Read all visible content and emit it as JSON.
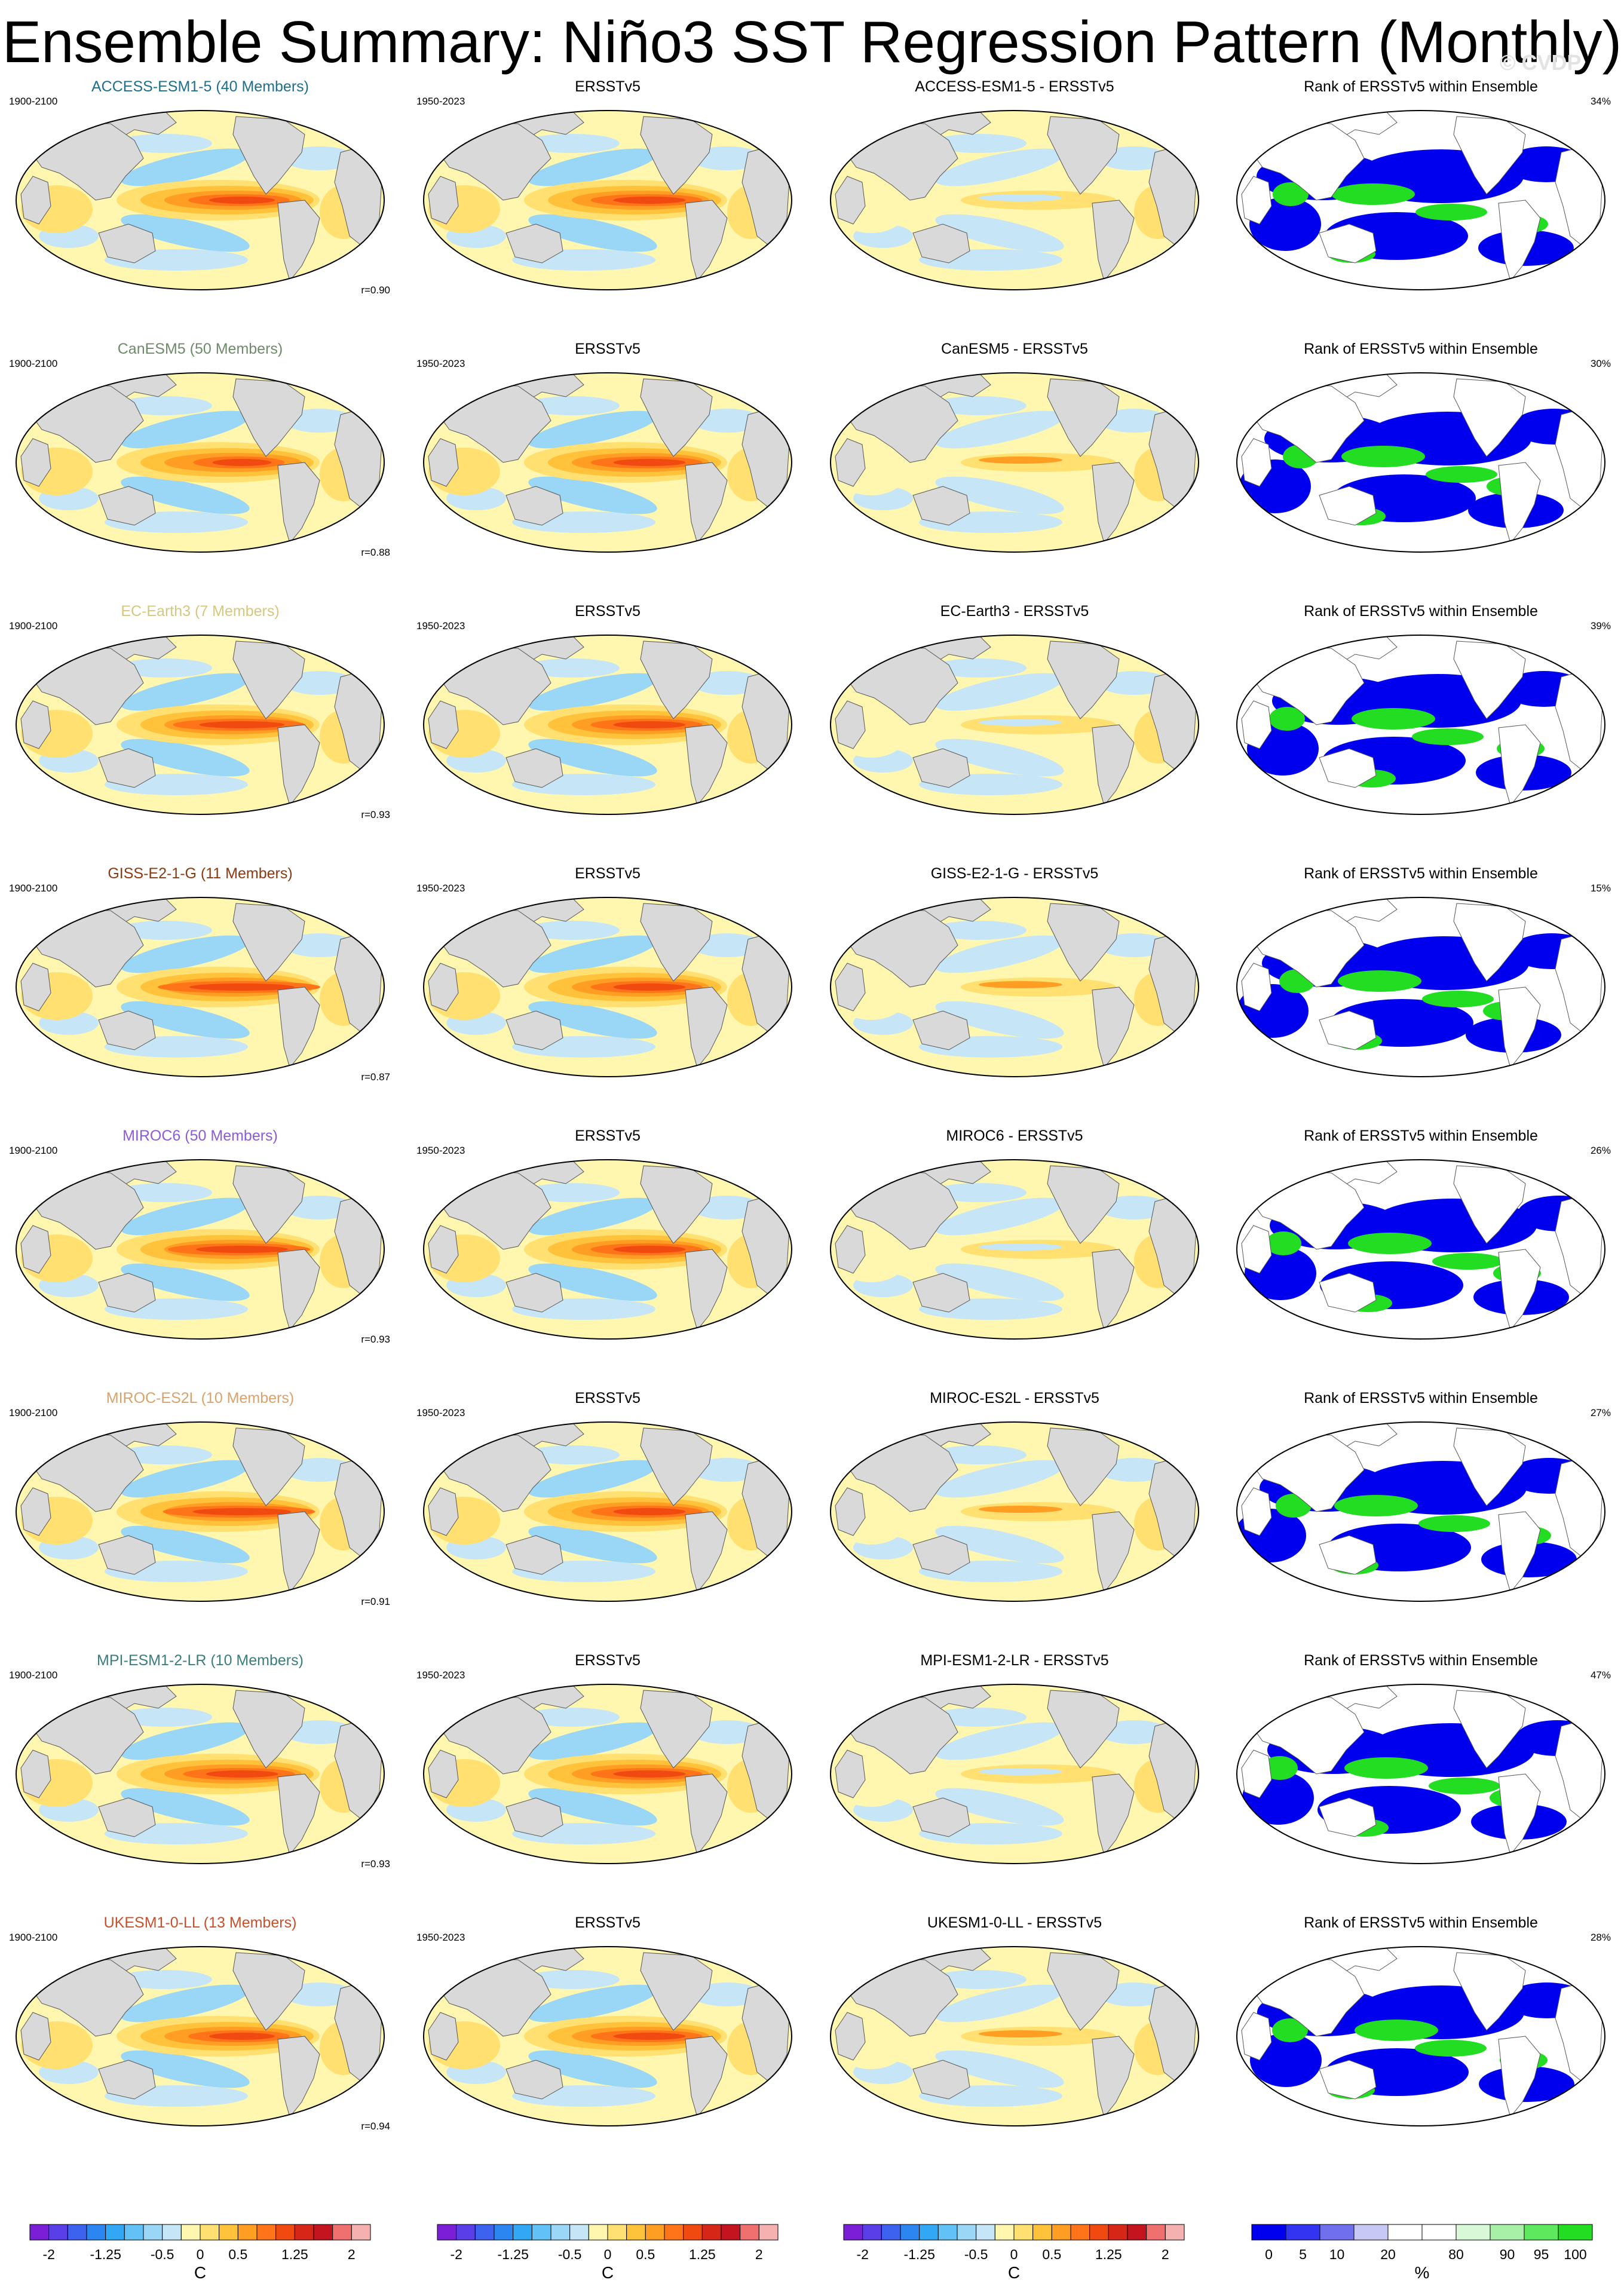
{
  "title": "Ensemble Summary: Niño3 SST Regression Pattern (Monthly)",
  "watermark": "© CVDP",
  "column_titles": {
    "observation": "ERSSTv5",
    "rank": "Rank of ERSSTv5 within Ensemble"
  },
  "model_period": "1900-2100",
  "obs_period": "1950-2023",
  "rows": [
    {
      "model": "ACCESS-ESM1-5 (40 Members)",
      "color": "#1e6e8e",
      "diff_title": "ACCESS-ESM1-5 - ERSSTv5",
      "r": "r=0.90",
      "rank_pct": "34%"
    },
    {
      "model": "CanESM5 (50 Members)",
      "color": "#6f8a6a",
      "diff_title": "CanESM5 - ERSSTv5",
      "r": "r=0.88",
      "rank_pct": "30%"
    },
    {
      "model": "EC-Earth3 (7 Members)",
      "color": "#d6c77e",
      "diff_title": "EC-Earth3 - ERSSTv5",
      "r": "r=0.93",
      "rank_pct": "39%"
    },
    {
      "model": "GISS-E2-1-G (11 Members)",
      "color": "#8a3a12",
      "diff_title": "GISS-E2-1-G - ERSSTv5",
      "r": "r=0.87",
      "rank_pct": "15%"
    },
    {
      "model": "MIROC6 (50 Members)",
      "color": "#8d5bd6",
      "diff_title": "MIROC6 - ERSSTv5",
      "r": "r=0.93",
      "rank_pct": "26%"
    },
    {
      "model": "MIROC-ES2L (10 Members)",
      "color": "#d9a26a",
      "diff_title": "MIROC-ES2L - ERSSTv5",
      "r": "r=0.91",
      "rank_pct": "27%"
    },
    {
      "model": "MPI-ESM1-2-LR (10 Members)",
      "color": "#3b7d7d",
      "diff_title": "MPI-ESM1-2-LR - ERSSTv5",
      "r": "r=0.93",
      "rank_pct": "47%"
    },
    {
      "model": "UKESM1-0-LL (13 Members)",
      "color": "#c8502a",
      "diff_title": "UKESM1-0-LL - ERSSTv5",
      "r": "r=0.94",
      "rank_pct": "28%"
    }
  ],
  "sst_colorbar": {
    "unit": "C",
    "colors": [
      "#7a1fd6",
      "#5a3fe8",
      "#3d62f0",
      "#2c86f2",
      "#32a8f5",
      "#62c2f5",
      "#9ad6f5",
      "#c6e6f7",
      "#fff7b0",
      "#ffe070",
      "#ffc23a",
      "#ff9e22",
      "#ff7418",
      "#f04a10",
      "#d62618",
      "#c41420",
      "#f07070",
      "#f5b0b0"
    ],
    "tick_labels": [
      "-2",
      "-1.25",
      "-0.5",
      "0",
      "0.5",
      "1.25",
      "2"
    ],
    "tick_values": [
      -2,
      -1.25,
      -0.5,
      0,
      0.5,
      1.25,
      2
    ]
  },
  "rank_colorbar": {
    "unit": "%",
    "colors": [
      "#0000ee",
      "#3333f2",
      "#7070ee",
      "#c8c8f4",
      "#ffffff",
      "#ffffff",
      "#d8f8d8",
      "#a8f0a8",
      "#5ee85e",
      "#22dd22"
    ],
    "tick_labels": [
      "0",
      "5",
      "10",
      "20",
      "80",
      "90",
      "95",
      "100"
    ]
  },
  "chart_data": [
    {
      "type": "heatmap",
      "title": "ACCESS-ESM1-5 (40 Members)",
      "column": "model",
      "pattern_correlation": 0.9
    },
    {
      "type": "heatmap",
      "title": "ERSSTv5",
      "column": "observation"
    },
    {
      "type": "heatmap",
      "title": "ACCESS-ESM1-5 - ERSSTv5",
      "column": "difference"
    },
    {
      "type": "heatmap",
      "title": "Rank of ERSSTv5 within Ensemble",
      "column": "rank",
      "rank_percent": 34
    },
    {
      "type": "heatmap",
      "title": "CanESM5 (50 Members)",
      "column": "model",
      "pattern_correlation": 0.88
    },
    {
      "type": "heatmap",
      "title": "CanESM5 - ERSSTv5",
      "column": "difference"
    },
    {
      "type": "heatmap",
      "title": "Rank of ERSSTv5 within Ensemble",
      "column": "rank",
      "rank_percent": 30
    },
    {
      "type": "heatmap",
      "title": "EC-Earth3 (7 Members)",
      "column": "model",
      "pattern_correlation": 0.93
    },
    {
      "type": "heatmap",
      "title": "EC-Earth3 - ERSSTv5",
      "column": "difference"
    },
    {
      "type": "heatmap",
      "title": "Rank of ERSSTv5 within Ensemble",
      "column": "rank",
      "rank_percent": 39
    },
    {
      "type": "heatmap",
      "title": "GISS-E2-1-G (11 Members)",
      "column": "model",
      "pattern_correlation": 0.87
    },
    {
      "type": "heatmap",
      "title": "GISS-E2-1-G - ERSSTv5",
      "column": "difference"
    },
    {
      "type": "heatmap",
      "title": "Rank of ERSSTv5 within Ensemble",
      "column": "rank",
      "rank_percent": 15
    },
    {
      "type": "heatmap",
      "title": "MIROC6 (50 Members)",
      "column": "model",
      "pattern_correlation": 0.93
    },
    {
      "type": "heatmap",
      "title": "MIROC6 - ERSSTv5",
      "column": "difference"
    },
    {
      "type": "heatmap",
      "title": "Rank of ERSSTv5 within Ensemble",
      "column": "rank",
      "rank_percent": 26
    },
    {
      "type": "heatmap",
      "title": "MIROC-ES2L (10 Members)",
      "column": "model",
      "pattern_correlation": 0.91
    },
    {
      "type": "heatmap",
      "title": "MIROC-ES2L - ERSSTv5",
      "column": "difference"
    },
    {
      "type": "heatmap",
      "title": "Rank of ERSSTv5 within Ensemble",
      "column": "rank",
      "rank_percent": 27
    },
    {
      "type": "heatmap",
      "title": "MPI-ESM1-2-LR (10 Members)",
      "column": "model",
      "pattern_correlation": 0.93
    },
    {
      "type": "heatmap",
      "title": "MPI-ESM1-2-LR - ERSSTv5",
      "column": "difference"
    },
    {
      "type": "heatmap",
      "title": "Rank of ERSSTv5 within Ensemble",
      "column": "rank",
      "rank_percent": 47
    },
    {
      "type": "heatmap",
      "title": "UKESM1-0-LL (13 Members)",
      "column": "model",
      "pattern_correlation": 0.94
    },
    {
      "type": "heatmap",
      "title": "UKESM1-0-LL - ERSSTv5",
      "column": "difference"
    },
    {
      "type": "heatmap",
      "title": "Rank of ERSSTv5 within Ensemble",
      "column": "rank",
      "rank_percent": 28
    }
  ]
}
